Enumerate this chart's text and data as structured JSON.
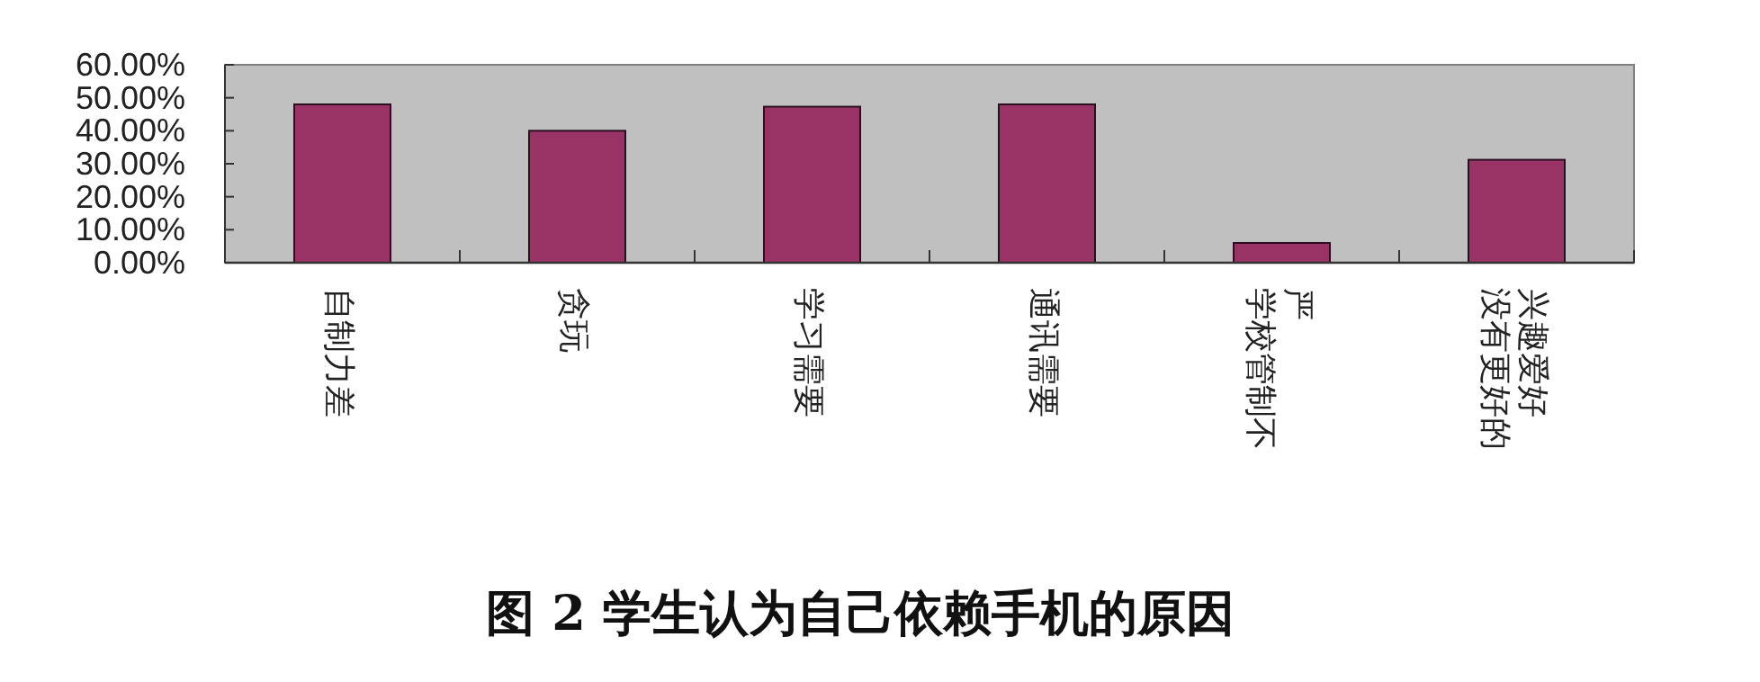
{
  "chart_data": {
    "type": "bar",
    "title": "**图 2**  学生认为自己依赖手机的原因",
    "categories": [
      "自制力差",
      "贪玩",
      "学习需要",
      "通讯需要",
      "学校管制不严",
      "没有更好的兴趣爱好"
    ],
    "values": [
      48,
      40,
      47.3,
      48,
      6,
      31.2
    ],
    "color": "#993366",
    "ylim": [
      0,
      60
    ],
    "yticks": [
      {
        "value": 0,
        "label": "0.00%"
      },
      {
        "value": 10,
        "label": "10.00%"
      },
      {
        "value": 20,
        "label": "20.00%"
      },
      {
        "value": 30,
        "label": "30.00%"
      },
      {
        "value": 40,
        "label": "40.00%"
      },
      {
        "value": 50,
        "label": "50.00%"
      },
      {
        "value": 60,
        "label": "60.00%"
      }
    ],
    "grid": false
  }
}
